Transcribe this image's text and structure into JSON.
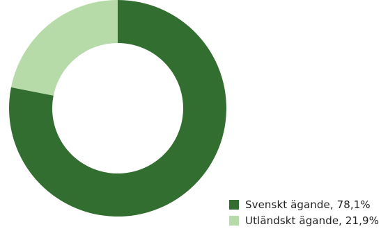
{
  "colors": {
    "svenskt": "#336e31",
    "utlandskt": "#b6dba9",
    "background": "#ffffff"
  },
  "chart_data": {
    "type": "pie",
    "variant": "donut",
    "legend_position": "bottom-right",
    "title": "",
    "slices": [
      {
        "label": "Svenskt ägande, 78,1%",
        "value": 78.1,
        "color": "#336e31"
      },
      {
        "label": "Utländskt ägande, 21,9%",
        "value": 21.9,
        "color": "#b6dba9"
      }
    ]
  },
  "legend": {
    "items": [
      {
        "label": "Svenskt ägande, 78,1%"
      },
      {
        "label": "Utländskt ägande, 21,9%"
      }
    ]
  }
}
